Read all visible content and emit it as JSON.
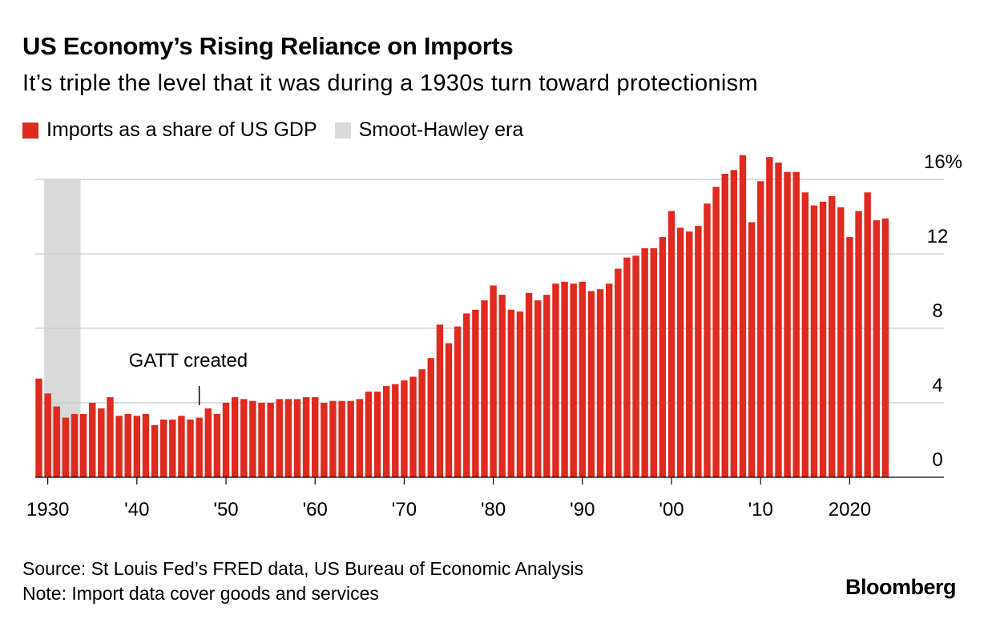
{
  "title": "US Economy’s Rising Reliance on Imports",
  "subtitle": "It’s triple the level that it was during a 1930s turn toward protectionism",
  "legend": {
    "imports_label": "Imports as a share of US GDP",
    "era_label": "Smoot-Hawley era"
  },
  "colors": {
    "bar": "#e0291f",
    "era_band": "#d9d9d9",
    "grid": "#cccccc",
    "axis": "#000000"
  },
  "source": "Source: St Louis Fed’s FRED data, US Bureau of Economic Analysis",
  "note": "Note: Import data cover goods and services",
  "brand": "Bloomberg",
  "chart_data": {
    "type": "bar",
    "x_start": 1929,
    "x": [
      1929,
      1930,
      1931,
      1932,
      1933,
      1934,
      1935,
      1936,
      1937,
      1938,
      1939,
      1940,
      1941,
      1942,
      1943,
      1944,
      1945,
      1946,
      1947,
      1948,
      1949,
      1950,
      1951,
      1952,
      1953,
      1954,
      1955,
      1956,
      1957,
      1958,
      1959,
      1960,
      1961,
      1962,
      1963,
      1964,
      1965,
      1966,
      1967,
      1968,
      1969,
      1970,
      1971,
      1972,
      1973,
      1974,
      1975,
      1976,
      1977,
      1978,
      1979,
      1980,
      1981,
      1982,
      1983,
      1984,
      1985,
      1986,
      1987,
      1988,
      1989,
      1990,
      1991,
      1992,
      1993,
      1994,
      1995,
      1996,
      1997,
      1998,
      1999,
      2000,
      2001,
      2002,
      2003,
      2004,
      2005,
      2006,
      2007,
      2008,
      2009,
      2010,
      2011,
      2012,
      2013,
      2014,
      2015,
      2016,
      2017,
      2018,
      2019,
      2020,
      2021,
      2022,
      2023,
      2024
    ],
    "values": [
      5.3,
      4.5,
      3.8,
      3.2,
      3.4,
      3.4,
      4.0,
      3.7,
      4.3,
      3.3,
      3.4,
      3.3,
      3.4,
      2.8,
      3.1,
      3.1,
      3.3,
      3.1,
      3.2,
      3.7,
      3.4,
      4.0,
      4.3,
      4.2,
      4.1,
      4.0,
      4.0,
      4.2,
      4.2,
      4.2,
      4.3,
      4.3,
      4.0,
      4.1,
      4.1,
      4.1,
      4.2,
      4.6,
      4.6,
      4.9,
      5.0,
      5.2,
      5.4,
      5.8,
      6.4,
      8.2,
      7.2,
      8.1,
      8.8,
      9.0,
      9.5,
      10.3,
      9.8,
      9.0,
      8.9,
      9.9,
      9.5,
      9.8,
      10.4,
      10.5,
      10.4,
      10.5,
      10.0,
      10.1,
      10.4,
      11.2,
      11.8,
      11.9,
      12.3,
      12.3,
      12.9,
      14.3,
      13.4,
      13.2,
      13.5,
      14.7,
      15.6,
      16.3,
      16.5,
      17.3,
      13.7,
      15.9,
      17.2,
      16.9,
      16.4,
      16.4,
      15.3,
      14.6,
      14.8,
      15.1,
      14.5,
      12.9,
      14.3,
      15.3,
      13.8,
      13.9
    ],
    "ylim": [
      0,
      16
    ],
    "y_ticks": [
      0,
      4,
      8,
      12,
      16
    ],
    "y_tick_labels": [
      "0",
      "4",
      "8",
      "12",
      "16%"
    ],
    "x_ticks": [
      1930,
      1940,
      1950,
      1960,
      1970,
      1980,
      1990,
      2000,
      2010,
      2020
    ],
    "x_tick_labels": [
      "1930",
      "'40",
      "'50",
      "'60",
      "'70",
      "'80",
      "'90",
      "'00",
      "'10",
      "2020"
    ],
    "shaded_band": {
      "label": "Smoot-Hawley era",
      "from": 1930,
      "to": 1934
    },
    "annotation": {
      "text": "GATT created",
      "x": 1947
    },
    "grid": true,
    "legend_position": "top-left"
  }
}
